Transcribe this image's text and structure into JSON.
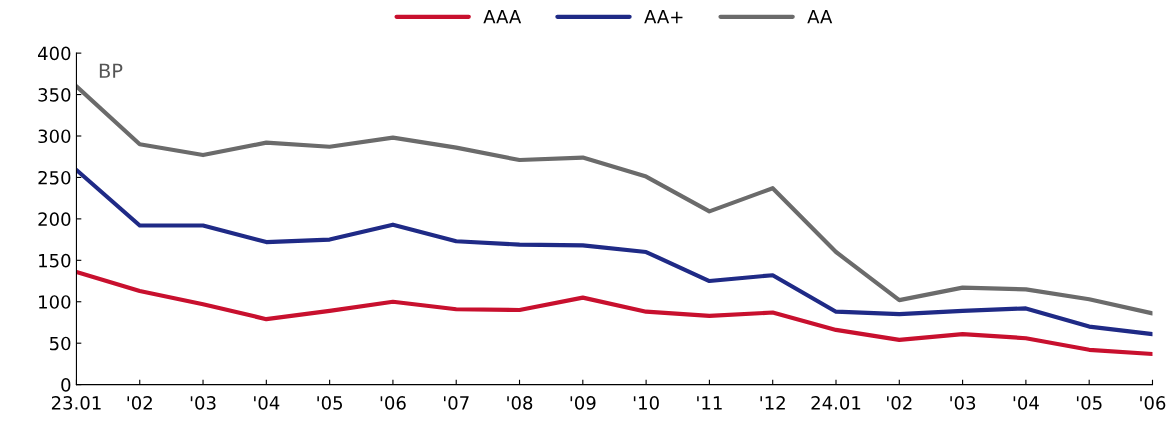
{
  "chart_data": {
    "type": "line",
    "categories": [
      "23.01",
      "'02",
      "'03",
      "'04",
      "'05",
      "'06",
      "'07",
      "'08",
      "'09",
      "'10",
      "'11",
      "'12",
      "24.01",
      "'02",
      "'03",
      "'04",
      "'05",
      "'06"
    ],
    "ylim": [
      0,
      400
    ],
    "yticks": [
      0,
      50,
      100,
      150,
      200,
      250,
      300,
      350,
      400
    ],
    "grid": false,
    "legend": "top",
    "marker": "none",
    "line_style": "solid",
    "annotations": [
      "BP"
    ],
    "series": [
      {
        "name": "AAA",
        "color": "#c8102e",
        "values": [
          136,
          113,
          97,
          79,
          89,
          100,
          91,
          90,
          105,
          88,
          83,
          87,
          66,
          54,
          61,
          56,
          42,
          37
        ]
      },
      {
        "name": "AA+",
        "color": "#1f2a86",
        "values": [
          259,
          192,
          192,
          172,
          175,
          193,
          173,
          169,
          168,
          160,
          125,
          132,
          88,
          85,
          89,
          92,
          70,
          61
        ]
      },
      {
        "name": "AA",
        "color": "#6b6b6b",
        "values": [
          360,
          290,
          277,
          292,
          287,
          298,
          286,
          271,
          274,
          251,
          209,
          237,
          160,
          102,
          117,
          115,
          103,
          86
        ]
      }
    ]
  }
}
